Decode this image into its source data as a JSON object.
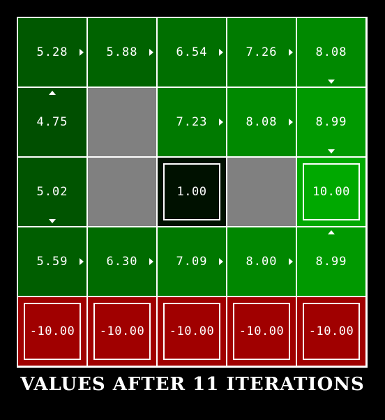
{
  "caption": "VALUES AFTER 11 ITERATIONS",
  "colors": {
    "background": "#000000",
    "grid_lines": "#ffffff",
    "wall": "#808080",
    "negative_terminal": "#a00000"
  },
  "grid": {
    "rows": 5,
    "cols": 5,
    "cells": [
      [
        {
          "type": "state",
          "value": "5.28",
          "arrow": "east",
          "color": "#005800"
        },
        {
          "type": "state",
          "value": "5.88",
          "arrow": "east",
          "color": "#006300"
        },
        {
          "type": "state",
          "value": "6.54",
          "arrow": "east",
          "color": "#006f00"
        },
        {
          "type": "state",
          "value": "7.26",
          "arrow": "east",
          "color": "#007b00"
        },
        {
          "type": "state",
          "value": "8.08",
          "arrow": "south",
          "color": "#008900"
        }
      ],
      [
        {
          "type": "state",
          "value": "4.75",
          "arrow": "north",
          "color": "#004f00"
        },
        {
          "type": "wall",
          "value": "",
          "arrow": "",
          "color": "#808080"
        },
        {
          "type": "state",
          "value": "7.23",
          "arrow": "east",
          "color": "#007a00"
        },
        {
          "type": "state",
          "value": "8.08",
          "arrow": "east",
          "color": "#008900"
        },
        {
          "type": "state",
          "value": "8.99",
          "arrow": "south",
          "color": "#009900"
        }
      ],
      [
        {
          "type": "state",
          "value": "5.02",
          "arrow": "south",
          "color": "#005400"
        },
        {
          "type": "wall",
          "value": "",
          "arrow": "",
          "color": "#808080"
        },
        {
          "type": "terminal",
          "value": "1.00",
          "arrow": "",
          "color": "#001100"
        },
        {
          "type": "wall",
          "value": "",
          "arrow": "",
          "color": "#808080"
        },
        {
          "type": "terminal",
          "value": "10.00",
          "arrow": "",
          "color": "#00a900"
        }
      ],
      [
        {
          "type": "state",
          "value": "5.59",
          "arrow": "east",
          "color": "#005e00"
        },
        {
          "type": "state",
          "value": "6.30",
          "arrow": "east",
          "color": "#006b00"
        },
        {
          "type": "state",
          "value": "7.09",
          "arrow": "east",
          "color": "#007800"
        },
        {
          "type": "state",
          "value": "8.00",
          "arrow": "east",
          "color": "#008700"
        },
        {
          "type": "state",
          "value": "8.99",
          "arrow": "north",
          "color": "#009900"
        }
      ],
      [
        {
          "type": "terminal",
          "value": "-10.00",
          "arrow": "",
          "color": "#a00000"
        },
        {
          "type": "terminal",
          "value": "-10.00",
          "arrow": "",
          "color": "#a00000"
        },
        {
          "type": "terminal",
          "value": "-10.00",
          "arrow": "",
          "color": "#a00000"
        },
        {
          "type": "terminal",
          "value": "-10.00",
          "arrow": "",
          "color": "#a00000"
        },
        {
          "type": "terminal",
          "value": "-10.00",
          "arrow": "",
          "color": "#a00000"
        }
      ]
    ]
  }
}
